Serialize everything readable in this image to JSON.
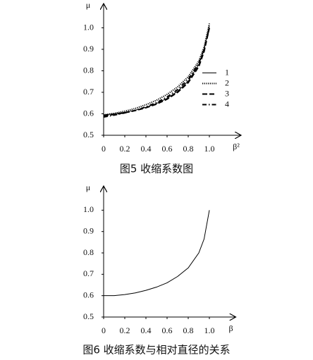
{
  "chart_data": [
    {
      "type": "line",
      "caption": "图5  收缩系数图",
      "ylabel": "μ",
      "xlabel": "β²",
      "x": [
        0,
        0.1,
        0.2,
        0.3,
        0.4,
        0.5,
        0.6,
        0.7,
        0.8,
        0.9,
        0.95,
        1.0
      ],
      "series": [
        {
          "name": "1",
          "color": "#000000",
          "dash": "solid",
          "values": [
            0.595,
            0.6,
            0.607,
            0.617,
            0.63,
            0.648,
            0.672,
            0.705,
            0.752,
            0.83,
            0.9,
            1.01
          ]
        },
        {
          "name": "2",
          "color": "#000000",
          "dash": "dotted",
          "values": [
            0.595,
            0.602,
            0.612,
            0.625,
            0.642,
            0.663,
            0.69,
            0.725,
            0.772,
            0.845,
            0.91,
            1.02
          ]
        },
        {
          "name": "3",
          "color": "#000000",
          "dash": "dashed",
          "values": [
            0.59,
            0.597,
            0.605,
            0.615,
            0.628,
            0.645,
            0.668,
            0.7,
            0.745,
            0.82,
            0.89,
            1.0
          ]
        },
        {
          "name": "4",
          "color": "#000000",
          "dash": "dashdot",
          "values": [
            0.585,
            0.594,
            0.604,
            0.616,
            0.632,
            0.652,
            0.678,
            0.713,
            0.76,
            0.835,
            0.9,
            1.0
          ]
        }
      ],
      "legend": "center right",
      "xlim": [
        0,
        1.3
      ],
      "ylim": [
        0.5,
        1.1
      ],
      "xticks": [
        0,
        0.2,
        0.4,
        0.6,
        0.8,
        {
          "value": 1,
          "label": "1.0"
        }
      ],
      "yticks": [
        0.5,
        0.6,
        0.7,
        0.8,
        0.9,
        {
          "value": 1,
          "label": "1.0"
        }
      ]
    },
    {
      "type": "line",
      "caption": "图6  收缩系数与相对直径的关系",
      "ylabel": "μ",
      "xlabel": "β",
      "x": [
        0,
        0.1,
        0.2,
        0.3,
        0.4,
        0.5,
        0.6,
        0.7,
        0.8,
        0.9,
        0.95,
        1.0
      ],
      "series": [
        {
          "color": "#000000",
          "dash": "solid",
          "values": [
            0.6,
            0.6,
            0.605,
            0.613,
            0.625,
            0.64,
            0.66,
            0.69,
            0.73,
            0.8,
            0.865,
            1.0
          ]
        }
      ],
      "xlim": [
        0,
        1.25
      ],
      "ylim": [
        0.5,
        1.1
      ],
      "xticks": [
        0,
        0.2,
        0.4,
        0.6,
        0.8,
        {
          "value": 1,
          "label": "1.0"
        }
      ],
      "yticks": [
        0.5,
        0.6,
        0.7,
        0.8,
        0.9,
        {
          "value": 1,
          "label": "1.0"
        }
      ]
    }
  ]
}
